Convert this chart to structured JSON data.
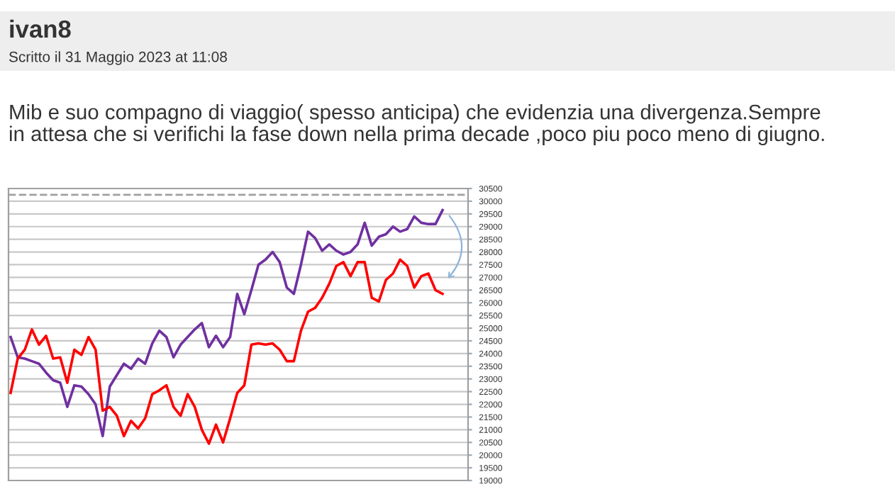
{
  "chart_data": {
    "type": "line",
    "title": "ivan8",
    "subtitle": "Scritto il 31 Maggio 2023 at 11:08",
    "annotations": [
      "Mib e suo compagno di viaggio( spesso anticipa) che evidenzia una divergenza.Sempre\nin attesa che si verifichi la fase down nella prima decade ,poco piu poco meno di giugno."
    ],
    "categories": [
      null,
      null,
      null,
      null,
      null,
      null,
      null,
      null,
      null,
      null,
      null,
      null,
      null,
      null,
      null,
      null,
      null,
      null,
      null,
      null,
      null,
      null,
      null,
      null,
      null,
      null,
      null,
      null,
      null,
      null,
      null,
      null,
      null,
      null,
      null,
      null,
      null,
      null,
      null,
      null,
      null,
      null,
      null,
      null,
      null,
      null,
      null,
      null,
      null,
      null,
      null,
      null,
      null,
      null,
      null,
      null,
      null,
      null,
      null,
      null,
      null,
      null
    ],
    "series": [
      {
        "color": "#7030a0",
        "values": [
          24650,
          23850,
          23800,
          23700,
          23600,
          23250,
          22950,
          22850,
          21900,
          22750,
          22700,
          22400,
          22000,
          20750,
          22700,
          23150,
          23600,
          23400,
          23800,
          23600,
          24400,
          24900,
          24650,
          23850,
          24350,
          24650,
          24950,
          25200,
          24250,
          24700,
          24250,
          24650,
          26350,
          25550,
          26500,
          27500,
          27700,
          28000,
          27600,
          26600,
          26350,
          27500,
          28800,
          28550,
          28050,
          28300,
          28050,
          27900,
          28000,
          28300,
          29150,
          28250,
          28600,
          28700,
          29000,
          28800,
          28900,
          29400,
          29150,
          29100,
          29100,
          29650
        ]
      },
      {
        "color": "#ff0000",
        "values": [
          22450,
          23800,
          24150,
          24950,
          24350,
          24700,
          23800,
          23850,
          22850,
          24150,
          23950,
          24650,
          24150,
          21750,
          21900,
          21550,
          20750,
          21350,
          21050,
          21450,
          22400,
          22550,
          22750,
          21900,
          21550,
          22400,
          21900,
          21000,
          20450,
          21200,
          20500,
          21450,
          22450,
          22750,
          24350,
          24400,
          24350,
          24400,
          24150,
          23700,
          23700,
          24900,
          25650,
          25800,
          26200,
          26750,
          27450,
          27600,
          27050,
          27600,
          27600,
          26200,
          26050,
          26900,
          27150,
          27700,
          27450,
          26600,
          27050,
          27150,
          26500,
          26350
        ]
      }
    ],
    "ylim": [
      19000,
      30500
    ],
    "yticks": [
      19000,
      19500,
      20000,
      20500,
      21000,
      21500,
      22000,
      22500,
      23000,
      23500,
      24000,
      24500,
      25000,
      25500,
      26000,
      26500,
      27000,
      27500,
      28000,
      28500,
      29000,
      29500,
      30000,
      30500
    ],
    "grid": "y",
    "ref_lines": [
      {
        "axis": "y",
        "value": 30250,
        "color": "#a0a0a0",
        "line_style": "dashed"
      }
    ],
    "marker": "none",
    "line_style": "solid",
    "legend": false
  }
}
